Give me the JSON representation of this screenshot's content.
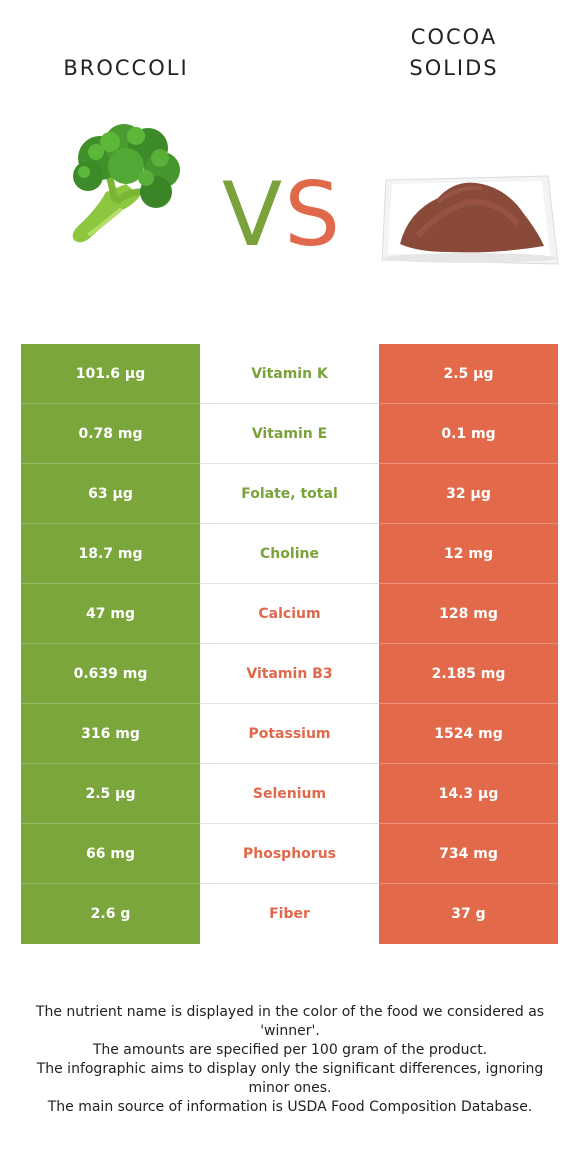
{
  "left_food": {
    "title_lines": [
      "BROCCOLI"
    ],
    "color": "#7aa63b"
  },
  "right_food": {
    "title_lines": [
      "COCOA",
      "SOLIDS"
    ],
    "color": "#e2694a"
  },
  "vs": {
    "v": "V",
    "s": "S"
  },
  "rows": [
    {
      "left": "101.6 µg",
      "nutrient": "Vitamin K",
      "right": "2.5 µg",
      "winner": "left"
    },
    {
      "left": "0.78 mg",
      "nutrient": "Vitamin E",
      "right": "0.1 mg",
      "winner": "left"
    },
    {
      "left": "63 µg",
      "nutrient": "Folate, total",
      "right": "32 µg",
      "winner": "left"
    },
    {
      "left": "18.7 mg",
      "nutrient": "Choline",
      "right": "12 mg",
      "winner": "left"
    },
    {
      "left": "47 mg",
      "nutrient": "Calcium",
      "right": "128 mg",
      "winner": "right"
    },
    {
      "left": "0.639 mg",
      "nutrient": "Vitamin B3",
      "right": "2.185 mg",
      "winner": "right"
    },
    {
      "left": "316 mg",
      "nutrient": "Potassium",
      "right": "1524 mg",
      "winner": "right"
    },
    {
      "left": "2.5 µg",
      "nutrient": "Selenium",
      "right": "14.3 µg",
      "winner": "right"
    },
    {
      "left": "66 mg",
      "nutrient": "Phosphorus",
      "right": "734 mg",
      "winner": "right"
    },
    {
      "left": "2.6 g",
      "nutrient": "Fiber",
      "right": "37 g",
      "winner": "right"
    }
  ],
  "footer": [
    "The nutrient name is displayed in the color of the food we considered as 'winner'.",
    "The amounts are specified per 100 gram of the product.",
    "The infographic aims to display only the significant differences, ignoring minor ones.",
    "The main source of information is USDA Food Composition Database."
  ]
}
